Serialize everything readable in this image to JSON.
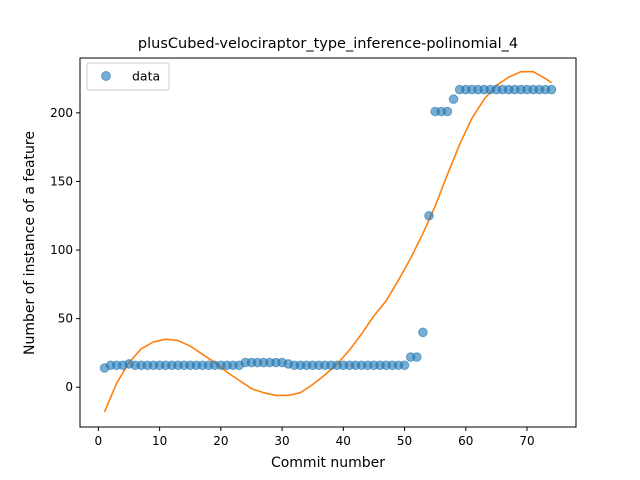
{
  "chart_data": {
    "type": "scatter",
    "title": "plusCubed-velociraptor_type_inference-polinomial_4",
    "xlabel": "Commit number",
    "ylabel": "Number of instance of a feature",
    "xlim": [
      -3,
      78
    ],
    "ylim": [
      -29,
      240
    ],
    "xticks": [
      0,
      10,
      20,
      30,
      40,
      50,
      60,
      70
    ],
    "yticks": [
      0,
      50,
      100,
      150,
      200
    ],
    "grid": false,
    "legend": {
      "position": "top-left",
      "entries": [
        "data"
      ]
    },
    "series": [
      {
        "name": "data",
        "kind": "scatter",
        "color": "#1f77b4",
        "x": [
          1,
          2,
          3,
          4,
          5,
          6,
          7,
          8,
          9,
          10,
          11,
          12,
          13,
          14,
          15,
          16,
          17,
          18,
          19,
          20,
          21,
          22,
          23,
          24,
          25,
          26,
          27,
          28,
          29,
          30,
          31,
          32,
          33,
          34,
          35,
          36,
          37,
          38,
          39,
          40,
          41,
          42,
          43,
          44,
          45,
          46,
          47,
          48,
          49,
          50,
          51,
          52,
          53,
          54,
          55,
          56,
          57,
          58,
          59,
          60,
          61,
          62,
          63,
          64,
          65,
          66,
          67,
          68,
          69,
          70,
          71,
          72,
          73,
          74
        ],
        "y": [
          14,
          16,
          16,
          16,
          17,
          16,
          16,
          16,
          16,
          16,
          16,
          16,
          16,
          16,
          16,
          16,
          16,
          16,
          16,
          16,
          16,
          16,
          16,
          18,
          18,
          18,
          18,
          18,
          18,
          18,
          17,
          16,
          16,
          16,
          16,
          16,
          16,
          16,
          16,
          16,
          16,
          16,
          16,
          16,
          16,
          16,
          16,
          16,
          16,
          16,
          22,
          22,
          40,
          125,
          201,
          201,
          201,
          210,
          217,
          217,
          217,
          217,
          217,
          217,
          217,
          217,
          217,
          217,
          217,
          217,
          217,
          217,
          217,
          217
        ]
      },
      {
        "kind": "line",
        "color": "#ff7f0e",
        "x": [
          1,
          3,
          5,
          7,
          9,
          11,
          13,
          15,
          17,
          19,
          21,
          23,
          25,
          27,
          29,
          31,
          33,
          35,
          37,
          39,
          41,
          43,
          45,
          47,
          49,
          51,
          53,
          55,
          57,
          59,
          61,
          63,
          65,
          67,
          69,
          71,
          73,
          74
        ],
        "y": [
          -18,
          3,
          18,
          28,
          33,
          35,
          34,
          30,
          24,
          18,
          11,
          5,
          -1,
          -4,
          -6,
          -6,
          -4,
          2,
          9,
          17,
          27,
          39,
          52,
          63,
          78,
          94,
          112,
          132,
          155,
          177,
          196,
          210,
          220,
          226,
          230,
          230,
          225,
          222
        ]
      }
    ]
  }
}
